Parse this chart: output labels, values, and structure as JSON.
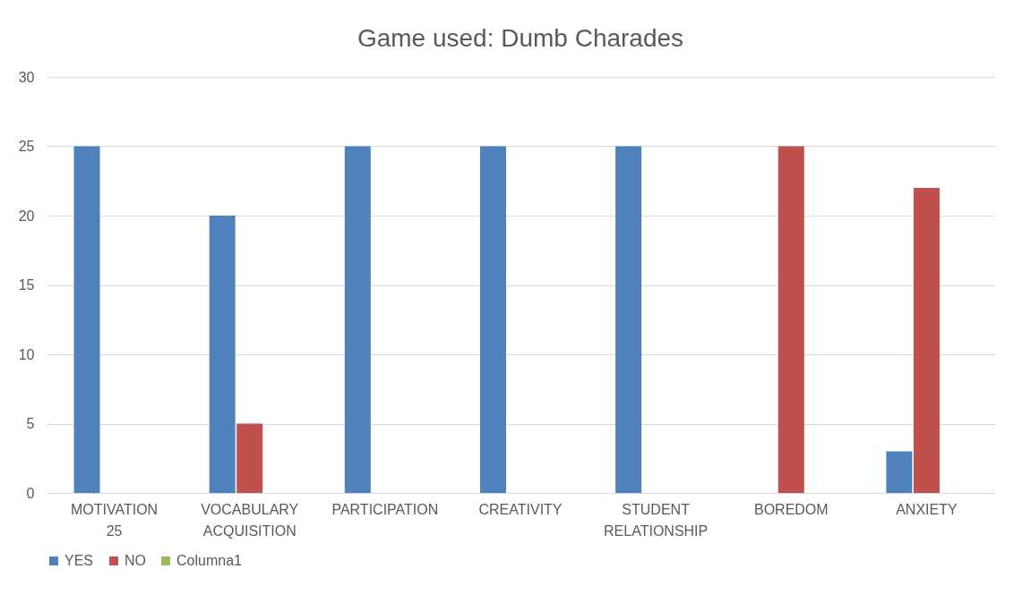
{
  "chart_data": {
    "type": "bar",
    "title": "Game used: Dumb Charades",
    "categories": [
      "MOTIVATION 25",
      "VOCABULARY ACQUISITION",
      "PARTICIPATION",
      "CREATIVITY",
      "STUDENT RELATIONSHIP",
      "BOREDOM",
      "ANXIETY"
    ],
    "series": [
      {
        "name": "YES",
        "color": "#4f81bd",
        "values": [
          25,
          20,
          25,
          25,
          25,
          null,
          3
        ]
      },
      {
        "name": "NO",
        "color": "#c0504d",
        "values": [
          null,
          5,
          null,
          null,
          null,
          25,
          22
        ]
      },
      {
        "name": "Columna1",
        "color": "#9bbb59",
        "values": [
          null,
          null,
          null,
          null,
          null,
          null,
          null
        ]
      }
    ],
    "ylim": [
      0,
      30
    ],
    "yticks": [
      0,
      5,
      10,
      15,
      20,
      25,
      30
    ],
    "grid": "y",
    "legend": "bottom"
  }
}
